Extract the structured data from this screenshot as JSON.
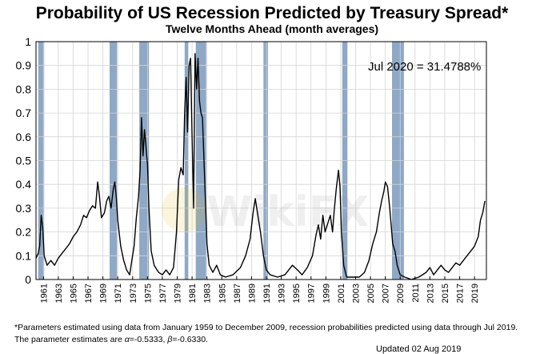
{
  "chart_data": {
    "type": "line",
    "title": "Probability of US Recession Predicted by Treasury Spread*",
    "subtitle": "Twelve Months Ahead (month averages)",
    "xlim": [
      1960.0,
      2020.6
    ],
    "ylim": [
      0,
      1
    ],
    "y_ticks": [
      0,
      0.1,
      0.2,
      0.3,
      0.4,
      0.5,
      0.6,
      0.7,
      0.8,
      0.9,
      1
    ],
    "y_tick_labels": [
      "0",
      "0.1",
      "0.2",
      "0.3",
      "0.4",
      "0.5",
      "0.6",
      "0.7",
      "0.8",
      "0.9",
      "1"
    ],
    "x_tick_labels": [
      "1961",
      "1963",
      "1965",
      "1967",
      "1969",
      "1971",
      "1973",
      "1975",
      "1977",
      "1979",
      "1981",
      "1983",
      "1985",
      "1987",
      "1989",
      "1991",
      "1993",
      "1995",
      "1997",
      "1999",
      "2001",
      "2003",
      "2005",
      "2007",
      "2009",
      "2011",
      "2013",
      "2015",
      "2017",
      "2019"
    ],
    "grid": true,
    "recessions": [
      [
        1960.3,
        1961.1
      ],
      [
        1969.9,
        1970.9
      ],
      [
        1973.9,
        1975.2
      ],
      [
        1980.0,
        1980.5
      ],
      [
        1981.5,
        1982.9
      ],
      [
        1990.6,
        1991.2
      ],
      [
        2001.2,
        2001.9
      ],
      [
        2007.9,
        2009.5
      ]
    ],
    "annotation": "Jul 2020 = 31.4788%",
    "series": [
      {
        "points": [
          [
            1960.0,
            0.09
          ],
          [
            1960.3,
            0.11
          ],
          [
            1960.5,
            0.14
          ],
          [
            1960.7,
            0.27
          ],
          [
            1960.9,
            0.22
          ],
          [
            1961.1,
            0.1
          ],
          [
            1961.5,
            0.06
          ],
          [
            1962.0,
            0.08
          ],
          [
            1962.5,
            0.06
          ],
          [
            1963.0,
            0.09
          ],
          [
            1963.5,
            0.11
          ],
          [
            1964.0,
            0.13
          ],
          [
            1964.5,
            0.15
          ],
          [
            1965.0,
            0.18
          ],
          [
            1965.5,
            0.2
          ],
          [
            1966.0,
            0.23
          ],
          [
            1966.4,
            0.27
          ],
          [
            1966.8,
            0.26
          ],
          [
            1967.2,
            0.29
          ],
          [
            1967.6,
            0.31
          ],
          [
            1968.0,
            0.3
          ],
          [
            1968.3,
            0.41
          ],
          [
            1968.5,
            0.36
          ],
          [
            1968.8,
            0.26
          ],
          [
            1969.2,
            0.28
          ],
          [
            1969.5,
            0.33
          ],
          [
            1969.8,
            0.35
          ],
          [
            1970.1,
            0.3
          ],
          [
            1970.4,
            0.38
          ],
          [
            1970.6,
            0.41
          ],
          [
            1970.8,
            0.35
          ],
          [
            1971.0,
            0.25
          ],
          [
            1971.4,
            0.14
          ],
          [
            1971.8,
            0.08
          ],
          [
            1972.2,
            0.04
          ],
          [
            1972.6,
            0.02
          ],
          [
            1972.9,
            0.08
          ],
          [
            1973.2,
            0.14
          ],
          [
            1973.5,
            0.26
          ],
          [
            1973.8,
            0.35
          ],
          [
            1974.0,
            0.46
          ],
          [
            1974.2,
            0.68
          ],
          [
            1974.4,
            0.52
          ],
          [
            1974.6,
            0.63
          ],
          [
            1974.8,
            0.56
          ],
          [
            1975.0,
            0.48
          ],
          [
            1975.2,
            0.3
          ],
          [
            1975.5,
            0.12
          ],
          [
            1975.9,
            0.06
          ],
          [
            1976.5,
            0.03
          ],
          [
            1977.0,
            0.02
          ],
          [
            1977.5,
            0.04
          ],
          [
            1978.0,
            0.02
          ],
          [
            1978.5,
            0.05
          ],
          [
            1978.9,
            0.2
          ],
          [
            1979.2,
            0.42
          ],
          [
            1979.5,
            0.47
          ],
          [
            1979.8,
            0.44
          ],
          [
            1980.0,
            0.7
          ],
          [
            1980.2,
            0.85
          ],
          [
            1980.4,
            0.62
          ],
          [
            1980.6,
            0.9
          ],
          [
            1980.8,
            0.93
          ],
          [
            1981.0,
            0.6
          ],
          [
            1981.2,
            0.3
          ],
          [
            1981.4,
            0.95
          ],
          [
            1981.6,
            0.8
          ],
          [
            1981.8,
            0.93
          ],
          [
            1982.0,
            0.75
          ],
          [
            1982.2,
            0.7
          ],
          [
            1982.4,
            0.68
          ],
          [
            1982.6,
            0.5
          ],
          [
            1982.8,
            0.33
          ],
          [
            1983.0,
            0.15
          ],
          [
            1983.3,
            0.06
          ],
          [
            1983.8,
            0.03
          ],
          [
            1984.3,
            0.06
          ],
          [
            1984.8,
            0.02
          ],
          [
            1985.5,
            0.01
          ],
          [
            1986.5,
            0.02
          ],
          [
            1987.5,
            0.05
          ],
          [
            1988.2,
            0.1
          ],
          [
            1988.8,
            0.17
          ],
          [
            1989.2,
            0.28
          ],
          [
            1989.5,
            0.34
          ],
          [
            1989.9,
            0.26
          ],
          [
            1990.2,
            0.2
          ],
          [
            1990.6,
            0.1
          ],
          [
            1991.0,
            0.04
          ],
          [
            1991.5,
            0.02
          ],
          [
            1992.5,
            0.01
          ],
          [
            1993.5,
            0.02
          ],
          [
            1994.5,
            0.06
          ],
          [
            1995.2,
            0.04
          ],
          [
            1995.8,
            0.02
          ],
          [
            1996.5,
            0.05
          ],
          [
            1997.2,
            0.1
          ],
          [
            1997.7,
            0.19
          ],
          [
            1998.0,
            0.23
          ],
          [
            1998.3,
            0.17
          ],
          [
            1998.6,
            0.27
          ],
          [
            1998.9,
            0.2
          ],
          [
            1999.3,
            0.24
          ],
          [
            1999.6,
            0.27
          ],
          [
            1999.9,
            0.2
          ],
          [
            2000.1,
            0.28
          ],
          [
            2000.4,
            0.38
          ],
          [
            2000.7,
            0.46
          ],
          [
            2000.9,
            0.39
          ],
          [
            2001.1,
            0.2
          ],
          [
            2001.4,
            0.06
          ],
          [
            2001.8,
            0.01
          ],
          [
            2002.5,
            0.01
          ],
          [
            2003.5,
            0.01
          ],
          [
            2004.2,
            0.03
          ],
          [
            2004.8,
            0.08
          ],
          [
            2005.3,
            0.15
          ],
          [
            2005.8,
            0.2
          ],
          [
            2006.2,
            0.28
          ],
          [
            2006.5,
            0.33
          ],
          [
            2006.8,
            0.37
          ],
          [
            2007.0,
            0.41
          ],
          [
            2007.3,
            0.39
          ],
          [
            2007.6,
            0.3
          ],
          [
            2008.0,
            0.15
          ],
          [
            2008.3,
            0.12
          ],
          [
            2008.6,
            0.06
          ],
          [
            2009.0,
            0.02
          ],
          [
            2009.6,
            0.01
          ],
          [
            2010.5,
            0.0
          ],
          [
            2011.5,
            0.01
          ],
          [
            2012.5,
            0.03
          ],
          [
            2013.0,
            0.05
          ],
          [
            2013.5,
            0.02
          ],
          [
            2014.0,
            0.04
          ],
          [
            2014.5,
            0.06
          ],
          [
            2015.0,
            0.04
          ],
          [
            2015.5,
            0.03
          ],
          [
            2016.0,
            0.05
          ],
          [
            2016.5,
            0.07
          ],
          [
            2017.0,
            0.06
          ],
          [
            2017.5,
            0.08
          ],
          [
            2018.0,
            0.1
          ],
          [
            2018.5,
            0.12
          ],
          [
            2019.0,
            0.14
          ],
          [
            2019.5,
            0.18
          ],
          [
            2019.8,
            0.25
          ],
          [
            2020.1,
            0.28
          ],
          [
            2020.4,
            0.33
          ]
        ]
      }
    ]
  },
  "watermark": "WikiFX",
  "footnotes": {
    "line1": "*Parameters estimated using data from January 1959 to December 2009, recession probabilities predicted using data through Jul 2019.",
    "line2_prefix": "The parameter estimates are ",
    "alpha_symbol": "α",
    "alpha_value": "=-0.5333, ",
    "beta_symbol": "β",
    "beta_value": "=-0.6330."
  },
  "updated_text": "Updated 02 Aug 2019"
}
